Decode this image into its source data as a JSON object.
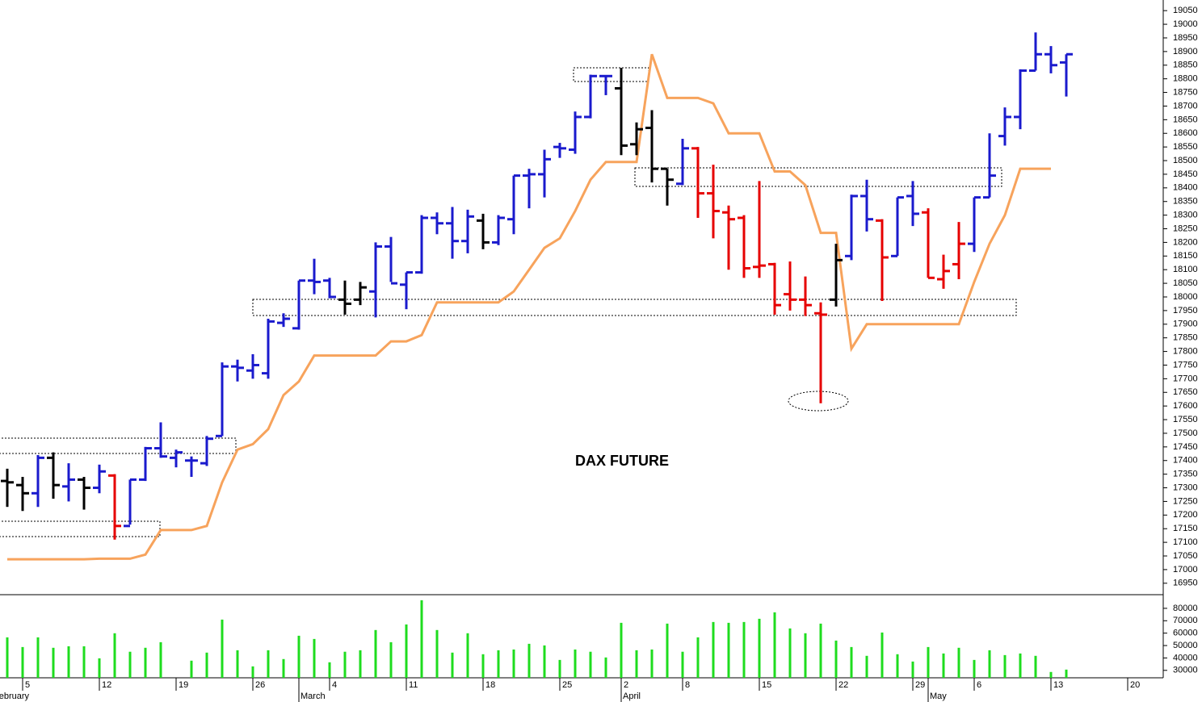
{
  "chart_data": {
    "type": "ohlc",
    "title": "DAX FUTURE",
    "categories": [
      null,
      null,
      "5",
      null,
      null,
      null,
      null,
      "12",
      null,
      null,
      null,
      null,
      "19",
      null,
      null,
      null,
      null,
      "26",
      null,
      null,
      null,
      null,
      "4",
      null,
      null,
      null,
      null,
      "11",
      null,
      null,
      null,
      null,
      "18",
      null,
      null,
      null,
      null,
      "25",
      null,
      null,
      null,
      "2",
      null,
      null,
      null,
      "8",
      null,
      null,
      null,
      null,
      "15",
      null,
      null,
      null,
      null,
      "22",
      null,
      null,
      null,
      null,
      "29",
      null,
      null,
      null,
      "6",
      null,
      null,
      null,
      null,
      "13",
      null,
      null,
      null,
      null,
      "20",
      null,
      null
    ],
    "months": [
      "February",
      null,
      null,
      null,
      null,
      null,
      null,
      null,
      null,
      null,
      null,
      null,
      null,
      null,
      null,
      null,
      null,
      null,
      null,
      null,
      "March",
      null,
      null,
      null,
      null,
      null,
      null,
      null,
      null,
      null,
      null,
      null,
      null,
      null,
      null,
      null,
      null,
      null,
      null,
      null,
      null,
      "April",
      null,
      null,
      null,
      null,
      null,
      null,
      null,
      null,
      null,
      null,
      null,
      null,
      null,
      null,
      null,
      null,
      null,
      null,
      null,
      "May",
      null,
      null,
      null,
      null,
      null,
      null,
      null,
      null,
      null,
      null,
      null,
      null,
      null,
      null
    ],
    "open": [
      null,
      17325,
      17310,
      17280,
      17410,
      17305,
      17330,
      17300,
      17345,
      17160,
      17330,
      17445,
      17410,
      17400,
      17390,
      17490,
      17745,
      17730,
      17720,
      17905,
      17885,
      18060,
      18060,
      17990,
      17990,
      18020,
      18185,
      18045,
      18090,
      18290,
      18270,
      18205,
      18280,
      18200,
      18285,
      18445,
      18450,
      18550,
      18540,
      18660,
      18810,
      18765,
      18560,
      18620,
      18470,
      18415,
      18545,
      18380,
      18310,
      18290,
      18110,
      18120,
      18010,
      17990,
      17940,
      17990,
      18150,
      18370,
      18280,
      18150,
      18370,
      18310,
      18065,
      18120,
      18195,
      18365,
      18590,
      18660,
      18830,
      18890,
      18860,
      null,
      null,
      null,
      null,
      null,
      null
    ],
    "high": [
      null,
      17370,
      17340,
      17420,
      17430,
      17390,
      17340,
      17385,
      17350,
      17330,
      17450,
      17540,
      17440,
      17415,
      17490,
      17760,
      17770,
      17790,
      17920,
      17940,
      18060,
      18140,
      18070,
      18060,
      18055,
      18200,
      18220,
      18090,
      18300,
      18310,
      18330,
      18320,
      18305,
      18300,
      18445,
      18470,
      18540,
      18565,
      18680,
      18815,
      18810,
      18840,
      18640,
      18685,
      18470,
      18580,
      18550,
      18485,
      18335,
      18300,
      18425,
      18125,
      18130,
      18075,
      17980,
      18195,
      18375,
      18430,
      18285,
      18365,
      18425,
      18325,
      18155,
      18275,
      18365,
      18600,
      18695,
      18835,
      18970,
      18920,
      18890,
      null,
      null,
      null,
      null,
      null,
      null
    ],
    "low": [
      null,
      17230,
      17215,
      17230,
      17260,
      17250,
      17220,
      17280,
      17110,
      17165,
      17325,
      17410,
      17375,
      17340,
      17380,
      17490,
      17690,
      17700,
      17700,
      17890,
      17880,
      18010,
      17995,
      17935,
      17970,
      17925,
      18055,
      17955,
      18085,
      18230,
      18140,
      18160,
      18175,
      18190,
      18230,
      18325,
      18365,
      18510,
      18525,
      18655,
      18740,
      18520,
      18520,
      18420,
      18335,
      18410,
      18290,
      18215,
      18100,
      18070,
      18070,
      17935,
      17950,
      17930,
      17610,
      17965,
      18135,
      18240,
      17985,
      18150,
      18260,
      18070,
      18030,
      18065,
      18165,
      18365,
      18555,
      18615,
      18830,
      18820,
      18735,
      null,
      null,
      null,
      null,
      null,
      null
    ],
    "close": [
      null,
      17320,
      17280,
      17410,
      17310,
      17330,
      17300,
      17360,
      17160,
      17330,
      17445,
      17415,
      17430,
      17400,
      17480,
      17745,
      17740,
      17750,
      17910,
      17920,
      18060,
      18055,
      18000,
      17975,
      18035,
      18185,
      18050,
      18090,
      18290,
      18270,
      18205,
      18295,
      18200,
      18290,
      18445,
      18450,
      18505,
      18545,
      18660,
      18810,
      18810,
      18555,
      18615,
      18470,
      18430,
      18545,
      18380,
      18315,
      18285,
      18105,
      18115,
      17970,
      17990,
      17970,
      17935,
      18135,
      18370,
      18285,
      18145,
      18365,
      18305,
      18070,
      18095,
      18195,
      18365,
      18445,
      18660,
      18830,
      18890,
      18850,
      18890,
      null,
      null,
      null,
      null,
      null,
      null
    ],
    "colors": [
      null,
      "#000000",
      "#000000",
      "#1a1acd",
      "#000000",
      "#1a1acd",
      "#000000",
      "#1a1acd",
      "#e60000",
      "#1a1acd",
      "#1a1acd",
      "#1a1acd",
      "#1a1acd",
      "#1a1acd",
      "#1a1acd",
      "#1a1acd",
      "#1a1acd",
      "#1a1acd",
      "#1a1acd",
      "#1a1acd",
      "#1a1acd",
      "#1a1acd",
      "#1a1acd",
      "#000000",
      "#000000",
      "#1a1acd",
      "#1a1acd",
      "#1a1acd",
      "#1a1acd",
      "#1a1acd",
      "#1a1acd",
      "#1a1acd",
      "#000000",
      "#1a1acd",
      "#1a1acd",
      "#1a1acd",
      "#1a1acd",
      "#1a1acd",
      "#1a1acd",
      "#1a1acd",
      "#1a1acd",
      "#000000",
      "#000000",
      "#000000",
      "#000000",
      "#1a1acd",
      "#e60000",
      "#e60000",
      "#e60000",
      "#e60000",
      "#e60000",
      "#e60000",
      "#e60000",
      "#e60000",
      "#e60000",
      "#000000",
      "#1a1acd",
      "#1a1acd",
      "#e60000",
      "#1a1acd",
      "#1a1acd",
      "#e60000",
      "#e60000",
      "#e60000",
      "#1a1acd",
      "#1a1acd",
      "#1a1acd",
      "#1a1acd",
      "#1a1acd",
      "#1a1acd",
      "#1a1acd",
      null,
      null,
      null,
      null,
      null,
      null
    ],
    "stop": {
      "color": "#f7a35c",
      "values": [
        null,
        17038,
        17038,
        17038,
        17038,
        17038,
        17038,
        17040,
        17040,
        17040,
        17055,
        17145,
        17145,
        17145,
        17160,
        17320,
        17440,
        17460,
        17515,
        17640,
        17690,
        17785,
        17785,
        17785,
        17785,
        17785,
        17837,
        17837,
        17860,
        17980,
        17980,
        17980,
        17980,
        17980,
        18020,
        18100,
        18180,
        18215,
        18315,
        18430,
        18495,
        18495,
        18495,
        18890,
        18730,
        18730,
        18730,
        18710,
        18600,
        18600,
        18600,
        18460,
        18460,
        18410,
        18235,
        18235,
        17810,
        17900,
        17900,
        17900,
        17900,
        17900,
        17900,
        17900,
        18055,
        18195,
        18300,
        18470,
        18470,
        18470,
        null,
        null,
        null,
        null,
        null,
        null
      ]
    },
    "volume": {
      "color": "#1edc1e",
      "ylim": [
        24000,
        91000
      ],
      "yticks": [
        30000,
        40000,
        50000,
        60000,
        70000,
        80000
      ],
      "values": [
        null,
        56600,
        48800,
        56600,
        48200,
        49400,
        49400,
        39700,
        59900,
        45000,
        48200,
        52700,
        null,
        37800,
        44300,
        70900,
        46200,
        33200,
        46200,
        39100,
        57900,
        55300,
        36500,
        45000,
        46200,
        62500,
        52700,
        67000,
        86500,
        62500,
        44300,
        59900,
        43000,
        46200,
        46800,
        51400,
        50100,
        38400,
        46800,
        45000,
        40400,
        68300,
        46200,
        46800,
        67700,
        45000,
        56600,
        69000,
        68300,
        69000,
        71600,
        76800,
        63800,
        59900,
        67700,
        54000,
        48800,
        41700,
        60500,
        43000,
        37100,
        48800,
        43600,
        48200,
        38400,
        46200,
        42300,
        43600,
        41700,
        28700,
        30600,
        null,
        null,
        null,
        null,
        null,
        null
      ]
    },
    "ylim": [
      16908,
      19089
    ],
    "yticks": [
      16950,
      17000,
      17050,
      17100,
      17150,
      17200,
      17250,
      17300,
      17350,
      17400,
      17450,
      17500,
      17550,
      17600,
      17650,
      17700,
      17750,
      17800,
      17850,
      17900,
      17950,
      18000,
      18050,
      18100,
      18150,
      18200,
      18250,
      18300,
      18350,
      18400,
      18450,
      18500,
      18550,
      18600,
      18650,
      18700,
      18750,
      18800,
      18850,
      18900,
      18950,
      19000,
      19050
    ]
  }
}
